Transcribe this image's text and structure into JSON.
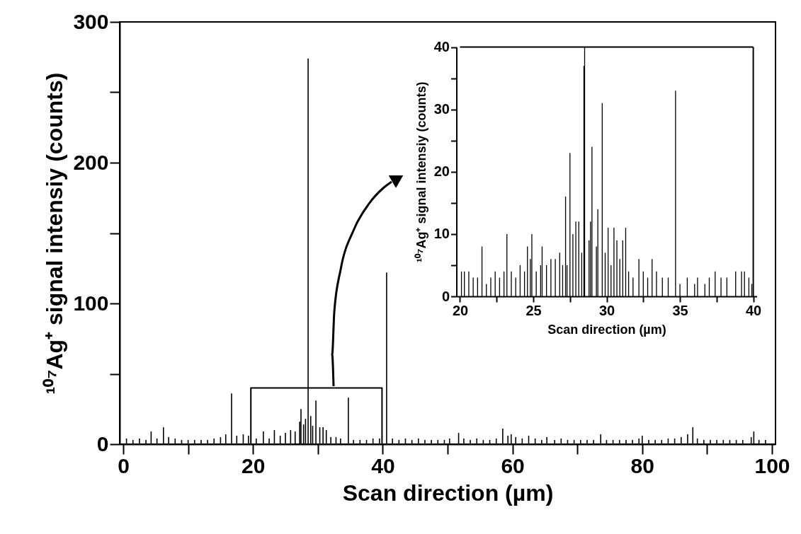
{
  "chart_data": [
    {
      "type": "bar",
      "xlabel": "Scan direction (µm)",
      "ylabel": "¹⁰⁷Ag⁺ signal intensiy (counts)",
      "xlim": [
        0,
        100
      ],
      "ylim": [
        0,
        300
      ],
      "xticks": [
        0,
        {
          "value": 10,
          "label": null
        },
        20,
        {
          "value": 30,
          "label": null
        },
        40,
        {
          "value": 50,
          "label": null
        },
        60,
        {
          "value": 70,
          "label": null
        },
        80,
        {
          "value": 90,
          "label": null
        },
        100
      ],
      "yticks": [
        0,
        {
          "value": 50,
          "label": null
        },
        100,
        {
          "value": 150,
          "label": null
        },
        200,
        {
          "value": 250,
          "label": null
        },
        300
      ],
      "grid": false,
      "series": [
        {
          "color": "#000000",
          "x": [
            0.5,
            1.5,
            2.5,
            3.5,
            4.3,
            5.2,
            6.2,
            7.0,
            8.0,
            9.0,
            10.0,
            11.0,
            12.0,
            13.0,
            14.0,
            15.0,
            15.8,
            16.7,
            17.5,
            18.5,
            19.3,
            20.5,
            21.6,
            22.5,
            23.3,
            24.2,
            25.0,
            25.8,
            26.5,
            27.2,
            27.4,
            27.8,
            28.1,
            28.5,
            28.9,
            29.2,
            29.7,
            30.3,
            30.8,
            31.3,
            32.0,
            32.8,
            33.5,
            34.7,
            35.5,
            36.5,
            37.5,
            38.5,
            39.5,
            40.6,
            41.5,
            42.5,
            43.5,
            44.5,
            45.5,
            46.5,
            47.5,
            48.5,
            49.5,
            50.3,
            51.7,
            52.5,
            53.5,
            54.5,
            55.5,
            56.5,
            57.5,
            58.5,
            59.3,
            59.8,
            60.5,
            61.5,
            62.5,
            63.5,
            64.5,
            65.3,
            66.5,
            67.5,
            68.5,
            69.5,
            70.5,
            71.5,
            72.5,
            73.6,
            74.5,
            75.5,
            76.5,
            77.5,
            78.5,
            79.5,
            80.0,
            81.0,
            82.0,
            83.0,
            84.0,
            85.0,
            86.0,
            87.0,
            87.8,
            88.5,
            89.5,
            90.5,
            91.5,
            92.5,
            93.5,
            94.5,
            95.5,
            96.8,
            97.2,
            98.0,
            99.0
          ],
          "values": [
            4,
            3,
            4,
            3,
            9,
            4,
            12,
            5,
            4,
            3,
            3,
            3,
            3,
            3,
            4,
            5,
            7,
            36,
            6,
            7,
            6,
            4,
            9,
            4,
            10,
            6,
            8,
            10,
            9,
            16,
            25,
            14,
            18,
            274,
            20,
            13,
            31,
            12,
            12,
            10,
            5,
            5,
            4,
            33,
            3,
            3,
            3,
            4,
            4,
            122,
            4,
            3,
            4,
            3,
            4,
            3,
            3,
            3,
            3,
            4,
            8,
            4,
            3,
            4,
            3,
            3,
            4,
            11,
            6,
            7,
            5,
            4,
            6,
            4,
            3,
            5,
            3,
            4,
            3,
            3,
            3,
            3,
            3,
            7,
            3,
            3,
            3,
            3,
            3,
            4,
            6,
            3,
            3,
            3,
            4,
            4,
            5,
            7,
            12,
            4,
            3,
            3,
            3,
            3,
            3,
            3,
            3,
            5,
            9,
            3,
            3
          ]
        }
      ]
    },
    {
      "type": "bar",
      "xlabel": "Scan direction (µm)",
      "ylabel": "¹⁰⁷Ag⁺ signal intensiy (counts)",
      "xlim": [
        20,
        40
      ],
      "ylim": [
        0,
        40
      ],
      "xticks": [
        20,
        {
          "value": 22.5,
          "label": null
        },
        25,
        {
          "value": 27.5,
          "label": null
        },
        30,
        {
          "value": 32.5,
          "label": null
        },
        35,
        {
          "value": 37.5,
          "label": null
        },
        40
      ],
      "yticks": [
        0,
        {
          "value": 5,
          "label": null
        },
        10,
        {
          "value": 15,
          "label": null
        },
        20,
        {
          "value": 25,
          "label": null
        },
        30,
        {
          "value": 35,
          "label": null
        },
        40
      ],
      "grid": false,
      "series": [
        {
          "color": "#000000",
          "x": [
            20.1,
            20.3,
            20.6,
            20.9,
            21.2,
            21.5,
            21.8,
            22.1,
            22.4,
            22.7,
            23.0,
            23.2,
            23.5,
            23.8,
            24.1,
            24.4,
            24.6,
            24.8,
            24.9,
            25.2,
            25.5,
            25.6,
            25.9,
            26.2,
            26.5,
            26.8,
            27.0,
            27.2,
            27.3,
            27.5,
            27.7,
            27.9,
            28.1,
            28.3,
            28.45,
            28.5,
            28.8,
            28.9,
            29.0,
            29.3,
            29.4,
            29.7,
            29.9,
            30.1,
            30.3,
            30.5,
            30.7,
            30.9,
            31.1,
            31.3,
            31.5,
            31.8,
            32.2,
            32.5,
            32.8,
            33.1,
            33.4,
            33.8,
            34.2,
            34.7,
            35.0,
            35.5,
            36.0,
            36.2,
            36.7,
            37.0,
            37.4,
            37.8,
            38.2,
            38.8,
            39.2,
            39.4,
            39.7,
            39.9
          ],
          "values": [
            4,
            4,
            4,
            3,
            3,
            8,
            2,
            3,
            4,
            3,
            4,
            10,
            4,
            3,
            5,
            4,
            8,
            6,
            10,
            4,
            5,
            8,
            5,
            6,
            6,
            7,
            5,
            16,
            5,
            23,
            10,
            12,
            12,
            7,
            37,
            40,
            9,
            12,
            24,
            8,
            14,
            31,
            7,
            11,
            5,
            11,
            9,
            6,
            9,
            11,
            4,
            3,
            6,
            4,
            3,
            6,
            4,
            3,
            3,
            33,
            2,
            3,
            2,
            3,
            2,
            3,
            4,
            3,
            3,
            4,
            4,
            4,
            3,
            2
          ]
        }
      ]
    }
  ]
}
